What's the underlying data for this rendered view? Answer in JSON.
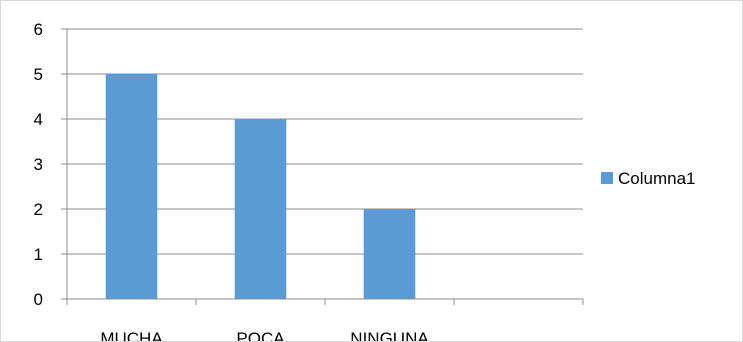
{
  "chart_data": {
    "type": "bar",
    "categories": [
      "MUCHA",
      "POCA",
      "NINGUNA",
      ""
    ],
    "series": [
      {
        "name": "Columna1",
        "values": [
          5,
          4,
          2,
          null
        ],
        "color": "#5b9bd5"
      }
    ],
    "ylim": [
      0,
      6
    ],
    "yticks": [
      0,
      1,
      2,
      3,
      4,
      5,
      6
    ],
    "grid": true,
    "legend_position": "right",
    "gridline_color": "#8c8c8c",
    "axis_color": "#8c8c8c",
    "text_color": "#000000"
  }
}
